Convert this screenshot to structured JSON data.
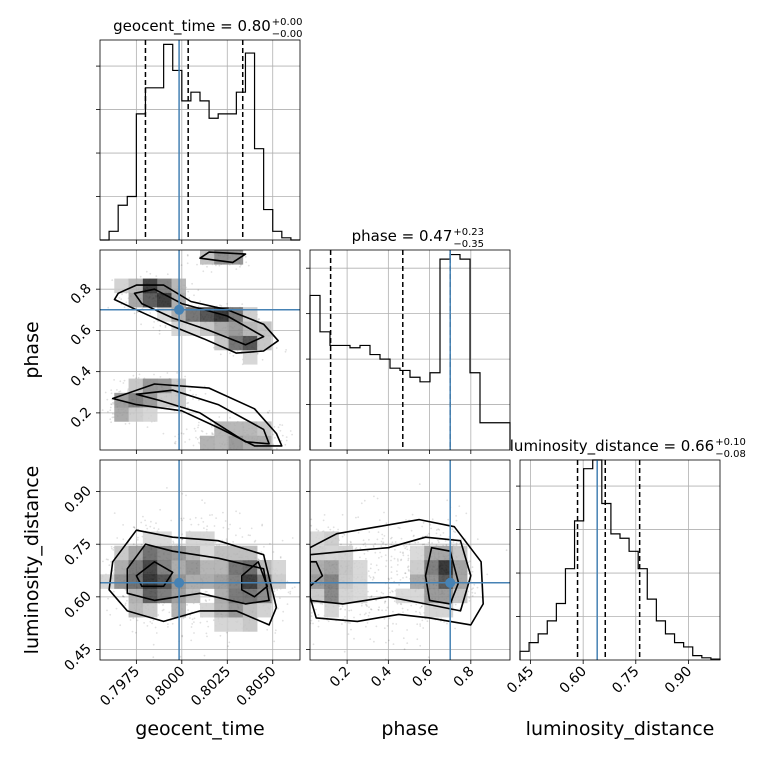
{
  "chart_data": {
    "type": "corner",
    "parameters": [
      {
        "key": "geocent_time",
        "label": "geocent_time",
        "range": [
          0.7955,
          0.8065
        ],
        "ticks": [
          0.7975,
          0.8,
          0.8025,
          0.805
        ],
        "tick_labels": [
          "0.7975",
          "0.8000",
          "0.8025",
          "0.8050"
        ],
        "title": {
          "prefix": "geocent_time = 0.80",
          "plus": "+0.00",
          "minus": "−0.00"
        },
        "quantiles": [
          0.798,
          0.80035,
          0.80335
        ],
        "truth": 0.79985,
        "hist_max": 4.6,
        "hist": [
          0.0,
          0.2,
          0.8,
          1.0,
          2.9,
          3.5,
          3.5,
          4.5,
          3.9,
          3.2,
          3.4,
          3.2,
          2.8,
          2.9,
          2.9,
          3.4,
          4.3,
          2.1,
          0.7,
          0.2,
          0.05,
          0.0
        ]
      },
      {
        "key": "phase",
        "label": "phase",
        "range": [
          0.02,
          0.99
        ],
        "ticks": [
          0.2,
          0.4,
          0.6,
          0.8
        ],
        "tick_labels": [
          "0.2",
          "0.4",
          "0.6",
          "0.8"
        ],
        "title": {
          "prefix": "phase = 0.47",
          "plus": "+0.23",
          "minus": "−0.35"
        },
        "quantiles": [
          0.12,
          0.47,
          0.7
        ],
        "truth": 0.7,
        "hist_max": 4.4,
        "hist": [
          3.4,
          2.6,
          2.3,
          2.3,
          2.25,
          2.3,
          2.1,
          2.0,
          1.8,
          1.75,
          1.6,
          1.5,
          1.7,
          4.2,
          4.3,
          4.2,
          1.7,
          0.6,
          0.6,
          0.6
        ]
      },
      {
        "key": "luminosity_distance",
        "label": "luminosity_distance",
        "range": [
          0.42,
          0.99
        ],
        "ticks": [
          0.45,
          0.6,
          0.75,
          0.9
        ],
        "tick_labels": [
          "0.45",
          "0.60",
          "0.75",
          "0.90"
        ],
        "title": {
          "prefix": "luminosity_distance = 0.66",
          "plus": "+0.10",
          "minus": "−0.08"
        },
        "quantiles": [
          0.584,
          0.663,
          0.761
        ],
        "truth": 0.64,
        "hist_max": 4.6,
        "hist": [
          0.2,
          0.4,
          0.6,
          0.9,
          1.3,
          2.1,
          3.2,
          4.4,
          4.6,
          3.6,
          2.9,
          2.8,
          2.5,
          2.1,
          1.4,
          0.9,
          0.6,
          0.4,
          0.3,
          0.1,
          0.05,
          0.02
        ]
      }
    ],
    "truth_color": "#4682b4",
    "grid": true,
    "contour_color": "#000000"
  }
}
